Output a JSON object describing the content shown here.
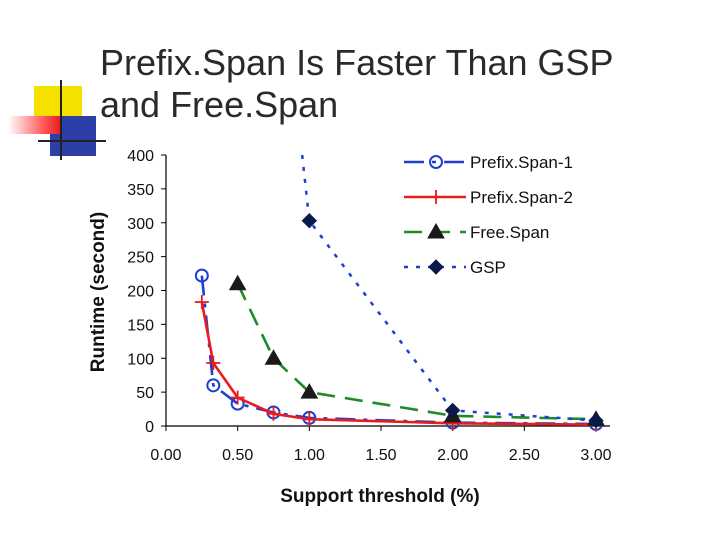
{
  "slide": {
    "title_line1": "Prefix.Span Is Faster Than GSP",
    "title_line2": "and Free.Span"
  },
  "chart_data": {
    "type": "line",
    "title": "",
    "xlabel": "Support threshold (%)",
    "ylabel": "Runtime (second)",
    "xlim": [
      0,
      3
    ],
    "ylim": [
      0,
      400
    ],
    "x_ticks": [
      "0.00",
      "0.50",
      "1.00",
      "1.50",
      "2.00",
      "2.50",
      "3.00"
    ],
    "y_ticks": [
      "0",
      "50",
      "100",
      "150",
      "200",
      "250",
      "300",
      "350",
      "400"
    ],
    "legend_position": "top-right",
    "series": [
      {
        "name": "Prefix.Span-1",
        "color": "#1f3fd0",
        "dash": "longdash-dot",
        "marker": "circle",
        "x": [
          0.25,
          0.33,
          0.5,
          0.75,
          1.0,
          2.0,
          3.0
        ],
        "y": [
          222,
          60,
          33,
          20,
          12,
          5,
          3
        ]
      },
      {
        "name": "Prefix.Span-2",
        "color": "#e81c1c",
        "dash": "solid",
        "marker": "plus",
        "x": [
          0.25,
          0.33,
          0.5,
          0.75,
          1.0,
          2.0,
          3.0
        ],
        "y": [
          183,
          93,
          42,
          18,
          10,
          4,
          2
        ]
      },
      {
        "name": "Free.Span",
        "color": "#1e8a2a",
        "dash": "dashed",
        "marker": "triangle",
        "x": [
          0.5,
          0.75,
          1.0,
          2.0,
          3.0
        ],
        "y": [
          210,
          100,
          50,
          15,
          10
        ]
      },
      {
        "name": "GSP",
        "color": "#1f3fd0",
        "dash": "dotted",
        "marker": "diamond",
        "x": [
          0.95,
          1.0,
          2.0,
          3.0
        ],
        "y": [
          400,
          303,
          23,
          8
        ]
      }
    ]
  }
}
